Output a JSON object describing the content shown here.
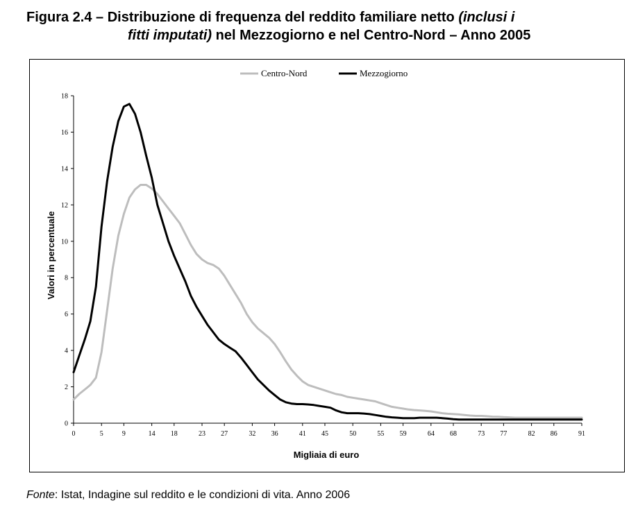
{
  "title": {
    "part1": "Figura 2.4 – Distribuzione di frequenza del reddito familiare netto ",
    "part2_italic": "(inclusi i",
    "part3_italic": "fitti imputati)",
    "part4": " nel Mezzogiorno e nel Centro-Nord – Anno 2005"
  },
  "source": {
    "label_italic": "Fonte",
    "text": ": Istat, Indagine sul reddito e le condizioni di vita. Anno 2006"
  },
  "chart_data": {
    "type": "line",
    "xlabel": "Migliaia di euro",
    "ylabel": "Valori in percentuale",
    "xlim": [
      0,
      91
    ],
    "ylim": [
      0,
      18
    ],
    "x_ticks": [
      0,
      5,
      9,
      14,
      18,
      23,
      27,
      32,
      36,
      41,
      45,
      50,
      55,
      59,
      64,
      68,
      73,
      77,
      82,
      86,
      91
    ],
    "y_ticks": [
      0,
      2,
      4,
      6,
      8,
      10,
      12,
      14,
      16,
      18
    ],
    "grid": false,
    "legend": "top-center",
    "x": [
      0,
      1,
      2,
      3,
      4,
      5,
      6,
      7,
      8,
      9,
      10,
      11,
      12,
      13,
      14,
      15,
      16,
      17,
      18,
      19,
      20,
      21,
      22,
      23,
      24,
      25,
      26,
      27,
      28,
      29,
      30,
      31,
      32,
      33,
      34,
      35,
      36,
      37,
      38,
      39,
      40,
      41,
      42,
      43,
      44,
      45,
      46,
      47,
      48,
      49,
      50,
      51,
      52,
      53,
      54,
      55,
      56,
      57,
      58,
      59,
      60,
      61,
      62,
      63,
      64,
      65,
      66,
      67,
      68,
      69,
      70,
      71,
      72,
      73,
      74,
      75,
      76,
      77,
      78,
      79,
      80,
      81,
      82,
      83,
      84,
      85,
      86,
      87,
      88,
      89,
      90,
      91
    ],
    "series": [
      {
        "name": "Centro-Nord",
        "color": "#bdbdbd",
        "values": [
          1.3,
          1.6,
          1.85,
          2.1,
          2.5,
          3.9,
          6.2,
          8.5,
          10.3,
          11.5,
          12.4,
          12.85,
          13.1,
          13.1,
          12.9,
          12.6,
          12.2,
          11.8,
          11.4,
          11,
          10.4,
          9.8,
          9.3,
          9.0,
          8.8,
          8.7,
          8.5,
          8.1,
          7.6,
          7.1,
          6.6,
          6.0,
          5.55,
          5.2,
          4.95,
          4.7,
          4.35,
          3.9,
          3.4,
          2.95,
          2.6,
          2.3,
          2.1,
          2.0,
          1.9,
          1.8,
          1.7,
          1.6,
          1.55,
          1.45,
          1.4,
          1.35,
          1.3,
          1.25,
          1.2,
          1.1,
          1.0,
          0.9,
          0.85,
          0.8,
          0.75,
          0.72,
          0.7,
          0.68,
          0.65,
          0.6,
          0.55,
          0.52,
          0.5,
          0.48,
          0.45,
          0.42,
          0.4,
          0.4,
          0.38,
          0.36,
          0.35,
          0.33,
          0.32,
          0.3,
          0.3,
          0.3,
          0.3,
          0.3,
          0.3,
          0.3,
          0.3,
          0.3,
          0.3,
          0.3,
          0.3,
          0.3
        ]
      },
      {
        "name": "Mezzogiorno",
        "color": "#000000",
        "values": [
          2.8,
          3.7,
          4.6,
          5.6,
          7.5,
          10.8,
          13.3,
          15.2,
          16.6,
          17.4,
          17.55,
          17.0,
          16.0,
          14.7,
          13.5,
          12.0,
          11.0,
          10.0,
          9.2,
          8.5,
          7.8,
          7.0,
          6.4,
          5.9,
          5.4,
          5.0,
          4.6,
          4.35,
          4.15,
          3.95,
          3.6,
          3.2,
          2.8,
          2.4,
          2.1,
          1.8,
          1.55,
          1.3,
          1.15,
          1.08,
          1.05,
          1.05,
          1.03,
          1.0,
          0.95,
          0.9,
          0.85,
          0.7,
          0.6,
          0.55,
          0.55,
          0.55,
          0.53,
          0.5,
          0.45,
          0.4,
          0.35,
          0.32,
          0.3,
          0.28,
          0.28,
          0.28,
          0.3,
          0.3,
          0.3,
          0.3,
          0.28,
          0.25,
          0.22,
          0.2,
          0.2,
          0.2,
          0.2,
          0.2,
          0.2,
          0.2,
          0.2,
          0.2,
          0.2,
          0.2,
          0.2,
          0.2,
          0.2,
          0.2,
          0.2,
          0.2,
          0.2,
          0.2,
          0.2,
          0.2,
          0.2,
          0.2
        ]
      }
    ]
  }
}
